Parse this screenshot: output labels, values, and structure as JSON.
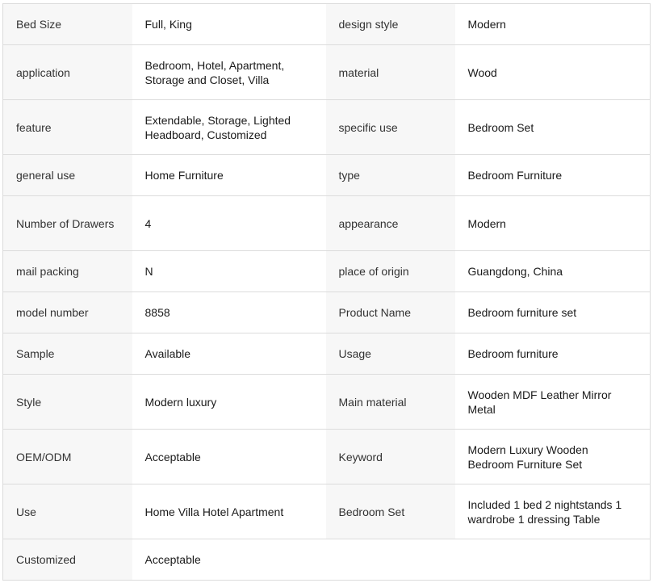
{
  "rows": [
    {
      "k1": "Bed Size",
      "v1": "Full, King",
      "k2": "design style",
      "v2": "Modern",
      "tall": false
    },
    {
      "k1": "application",
      "v1": "Bedroom, Hotel, Apartment, Storage and Closet, Villa",
      "k2": "material",
      "v2": "Wood",
      "tall": true
    },
    {
      "k1": "feature",
      "v1": "Extendable, Storage, Lighted Headboard, Customized",
      "k2": "specific use",
      "v2": "Bedroom Set",
      "tall": true
    },
    {
      "k1": "general use",
      "v1": "Home Furniture",
      "k2": "type",
      "v2": "Bedroom Furniture",
      "tall": false
    },
    {
      "k1": "Number of Drawers",
      "v1": "4",
      "k2": "appearance",
      "v2": "Modern",
      "tall": true
    },
    {
      "k1": "mail packing",
      "v1": "N",
      "k2": "place of origin",
      "v2": "Guangdong, China",
      "tall": false
    },
    {
      "k1": "model number",
      "v1": "8858",
      "k2": "Product Name",
      "v2": "Bedroom furniture set",
      "tall": false
    },
    {
      "k1": "Sample",
      "v1": "Available",
      "k2": "Usage",
      "v2": "Bedroom furniture",
      "tall": false
    },
    {
      "k1": "Style",
      "v1": "Modern luxury",
      "k2": "Main material",
      "v2": "Wooden MDF Leather Mirror Metal",
      "tall": true
    },
    {
      "k1": "OEM/ODM",
      "v1": "Acceptable",
      "k2": "Keyword",
      "v2": "Modern Luxury Wooden Bedroom Furniture Set",
      "tall": true
    },
    {
      "k1": "Use",
      "v1": "Home Villa Hotel Apartment",
      "k2": "Bedroom Set",
      "v2": "Included 1 bed 2 nightstands 1 wardrobe 1 dressing Table",
      "tall": true
    },
    {
      "k1": "Customized",
      "v1": "Acceptable",
      "tall": false
    }
  ]
}
